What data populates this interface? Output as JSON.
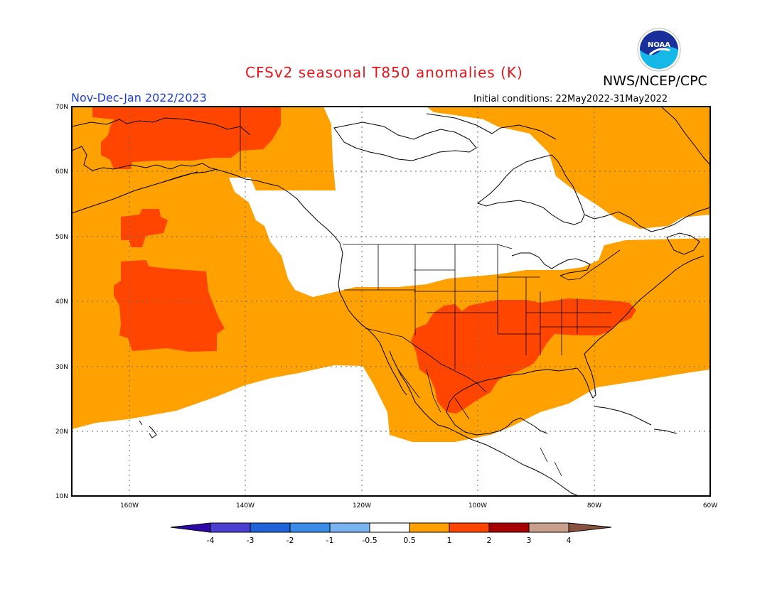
{
  "header": {
    "title": "CFSv2 seasonal T850 anomalies (K)",
    "agency": "NWS/NCEP/CPC",
    "season": "Nov-Dec-Jan 2022/2023",
    "initial_conditions": "Initial conditions: 22May2022-31May2022",
    "logo_text": "NOAA"
  },
  "map": {
    "region": "North America",
    "lon_range": [
      "170W",
      "60W"
    ],
    "lat_range": [
      "10N",
      "70N"
    ],
    "lat_labels": [
      "70N",
      "60N",
      "50N",
      "40N",
      "30N",
      "20N",
      "10N"
    ],
    "lon_labels": [
      "160W",
      "140W",
      "120W",
      "100W",
      "80W",
      "60W"
    ],
    "grid": "dotted",
    "anomaly_summary": [
      {
        "area": "Alaska / NE Pacific / Canadian Arctic",
        "category": "0.5 to 1"
      },
      {
        "area": "Eastern & Southern United States",
        "category": "1 to 2"
      },
      {
        "area": "Northern Alaska",
        "category": "1 to 2"
      },
      {
        "area": "NE Pacific (40N 160W)",
        "category": "1 to 2"
      },
      {
        "area": "Western Canada / NW US / Hudson Bay",
        "category": "-0.5 to 0.5"
      }
    ]
  },
  "colorbar": {
    "labels": [
      "-4",
      "-3",
      "-2",
      "-1",
      "-0.5",
      "0.5",
      "1",
      "2",
      "3",
      "4"
    ],
    "colors": [
      "#2e07a8",
      "#4b3fd0",
      "#1e64d8",
      "#3a8ce8",
      "#7ab4f0",
      "#ffffff",
      "#ffa100",
      "#ff4500",
      "#a80000",
      "#c8a08c",
      "#8a5040"
    ]
  }
}
